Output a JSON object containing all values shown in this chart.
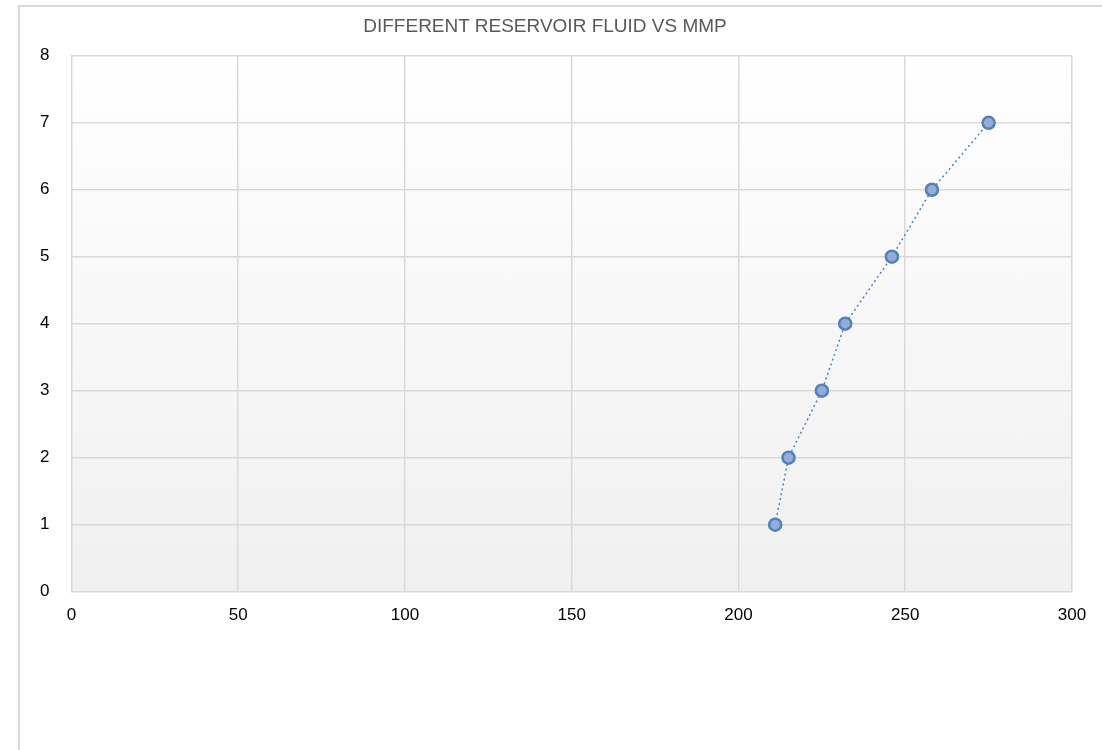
{
  "chart_data": {
    "type": "line",
    "title": "DIFFERENT RESERVOIR FLUID VS MMP",
    "x": [
      211,
      215,
      225,
      232,
      246,
      258,
      275
    ],
    "series": [
      {
        "color": "#4f81bd",
        "values": [
          1,
          2,
          3,
          4,
          5,
          6,
          7
        ]
      }
    ],
    "xlim": [
      0,
      300
    ],
    "xticks": [
      0,
      50,
      100,
      150,
      200,
      250,
      300
    ],
    "ylim": [
      0,
      8
    ],
    "yticks": [
      0,
      1,
      2,
      3,
      4,
      5,
      6,
      7,
      8
    ],
    "grid": true,
    "legend": false,
    "marker": "circle",
    "line_style": "dotted"
  }
}
